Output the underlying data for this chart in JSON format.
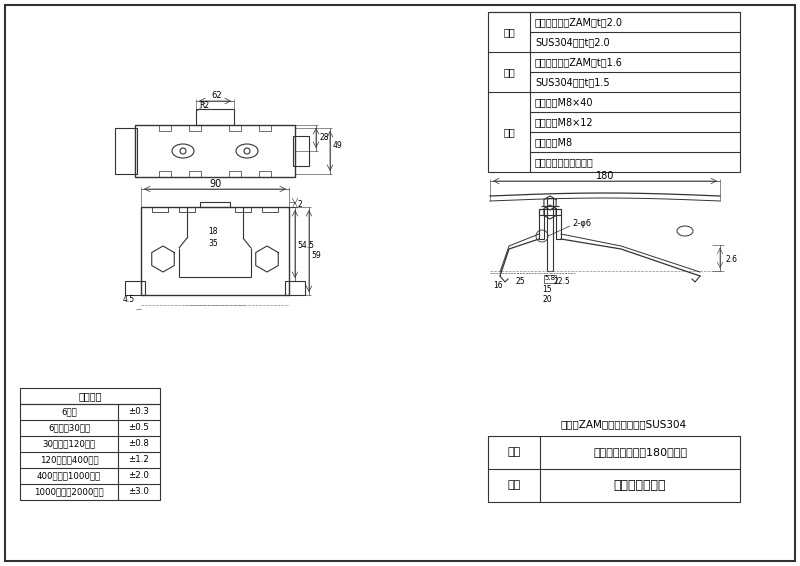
{
  "bg_color": "#ffffff",
  "line_color": "#333333",
  "dim_color": "#555555",
  "title_box": {
    "name_label": "名称",
    "name_value": "嵌合ストッパー　180羽根付",
    "company_label": "社名",
    "company_value": "株式会社アミリ"
  },
  "material_text": "材質：ZAM、ドブメッキ、SUS304",
  "parts_table": {
    "rows": [
      {
        "category": "本体",
        "items": [
          "ドブメッキ、ZAM　t＝2.0",
          "SUS304　　t＝2.0"
        ]
      },
      {
        "category": "羽根",
        "items": [
          "ドブメッキ、ZAM　t＝1.6",
          "SUS304　　t＝1.5"
        ]
      },
      {
        "category": "部品",
        "items": [
          "ボルト　M8×40",
          "ボルト　M8×12",
          "ナット　M8",
          "スプリングワッシャー"
        ]
      }
    ]
  },
  "tolerance_table": {
    "title": "寸法公差",
    "rows": [
      [
        "6以下",
        "±0.3"
      ],
      [
        "6を超え30以下",
        "±0.5"
      ],
      [
        "30を超え120以下",
        "±0.8"
      ],
      [
        "120を超え400以下",
        "±1.2"
      ],
      [
        "400を超え1000以下",
        "±2.0"
      ],
      [
        "1000を超え2000以下",
        "±3.0"
      ]
    ]
  }
}
